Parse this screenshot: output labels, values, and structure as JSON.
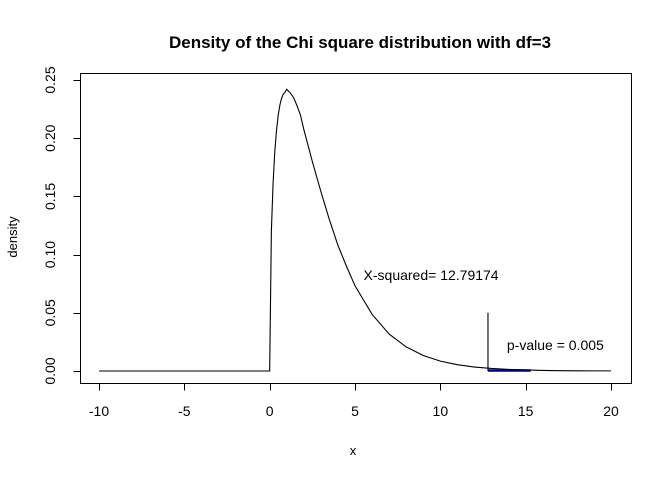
{
  "chart_data": {
    "type": "line",
    "title": "Density of the Chi square distribution with df=3",
    "xlabel": "x",
    "ylabel": "density",
    "xlim": [
      -10,
      20
    ],
    "ylim": [
      0,
      0.25
    ],
    "x_ticks": [
      "-10",
      "-5",
      "0",
      "5",
      "10",
      "15",
      "20"
    ],
    "y_ticks": [
      "0.00",
      "0.05",
      "0.10",
      "0.15",
      "0.20",
      "0.25"
    ],
    "grid": false,
    "series": [
      {
        "x": [
          -10,
          -5,
          0,
          0.1,
          0.2,
          0.3,
          0.4,
          0.5,
          0.6,
          0.7,
          0.8,
          0.9,
          1.0,
          1.2,
          1.4,
          1.6,
          1.8,
          2.0,
          2.5,
          3.0,
          3.5,
          4.0,
          4.5,
          5.0,
          6.0,
          7.0,
          8.0,
          9.0,
          10.0,
          11.0,
          12.0,
          13.0,
          14.0,
          15.0,
          16.0,
          17.0,
          18.0,
          19.0,
          20.0
        ],
        "y": [
          0,
          0,
          0,
          0.12,
          0.1614,
          0.1883,
          0.2066,
          0.2197,
          0.2286,
          0.2344,
          0.2379,
          0.2394,
          0.242,
          0.239,
          0.235,
          0.228,
          0.22,
          0.2076,
          0.18,
          0.1542,
          0.13,
          0.108,
          0.09,
          0.0732,
          0.0487,
          0.0317,
          0.0207,
          0.0133,
          0.0085,
          0.0054,
          0.0034,
          0.0022,
          0.0014,
          0.0009,
          0.0005,
          0.0003,
          0.0002,
          0.0001,
          0.0001
        ]
      }
    ],
    "annotations": [
      {
        "text": "X-squared= 12.79174",
        "x": 5.5,
        "y": 0.078
      },
      {
        "text": "p-value = 0.005",
        "x": 13.9,
        "y": 0.018
      }
    ],
    "statistic_line": {
      "x": 12.79174,
      "y_top": 0.05
    },
    "tail_shading": {
      "x_from": 12.79174,
      "x_to": 15.3,
      "color": "#00008b"
    }
  }
}
